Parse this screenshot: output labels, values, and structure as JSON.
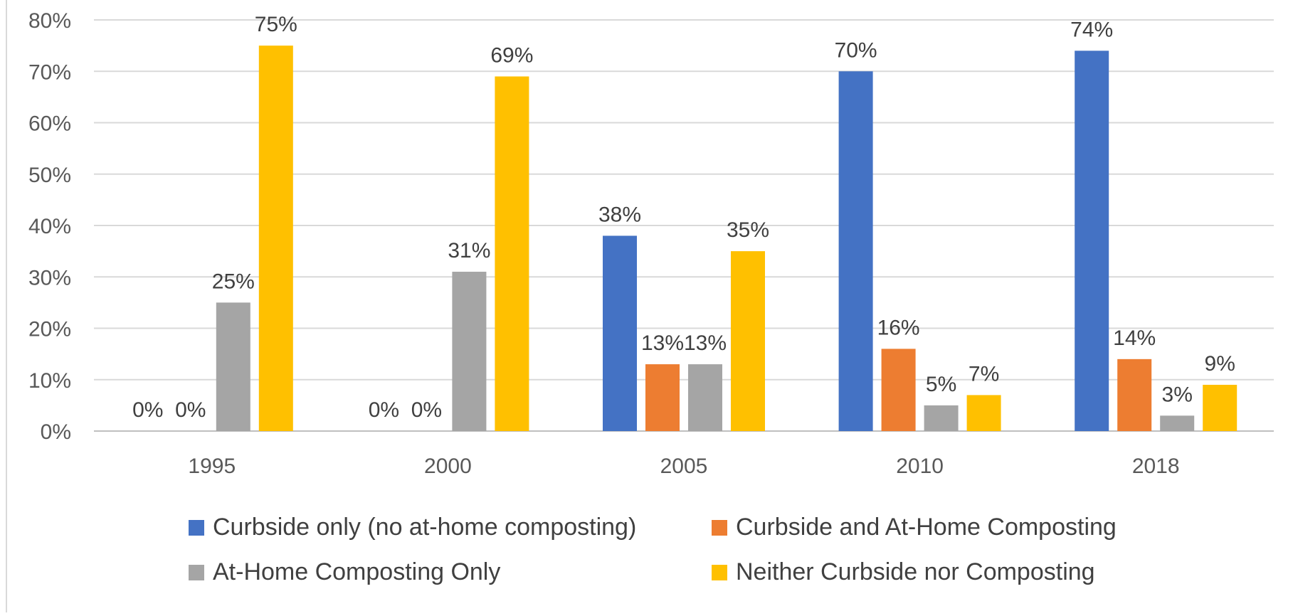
{
  "chart_data": {
    "type": "bar",
    "categories": [
      "1995",
      "2000",
      "2005",
      "2010",
      "2018"
    ],
    "series": [
      {
        "name": "Curbside only (no at-home composting)",
        "color": "#4472C4",
        "values": [
          0,
          0,
          38,
          70,
          74
        ],
        "labels": [
          "0%",
          "0%",
          "38%",
          "70%",
          "74%"
        ]
      },
      {
        "name": "Curbside and At-Home Composting",
        "color": "#ED7D31",
        "values": [
          0,
          0,
          13,
          16,
          14
        ],
        "labels": [
          "0%",
          "0%",
          "13%",
          "16%",
          "14%"
        ]
      },
      {
        "name": "At-Home Composting Only",
        "color": "#A5A5A5",
        "values": [
          25,
          31,
          13,
          5,
          3
        ],
        "labels": [
          "25%",
          "31%",
          "13%",
          "5%",
          "3%"
        ]
      },
      {
        "name": "Neither Curbside nor Composting",
        "color": "#FFC000",
        "values": [
          75,
          69,
          35,
          7,
          9
        ],
        "labels": [
          "75%",
          "69%",
          "35%",
          "7%",
          "9%"
        ]
      }
    ],
    "y_ticks": [
      "0%",
      "10%",
      "20%",
      "30%",
      "40%",
      "50%",
      "60%",
      "70%",
      "80%"
    ],
    "ylim": [
      0,
      80
    ],
    "grid": true,
    "legend_position": "bottom"
  }
}
